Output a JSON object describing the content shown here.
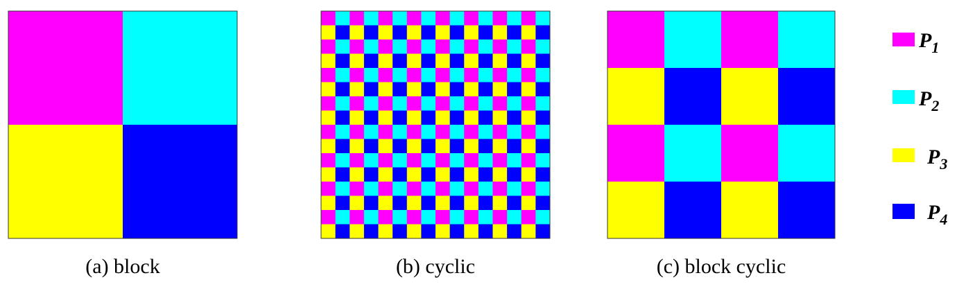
{
  "colors": {
    "P1": "#ff00ff",
    "P2": "#00ffff",
    "P3": "#ffff00",
    "P4": "#0000ff",
    "border": "#333333"
  },
  "panels": [
    {
      "id": "block",
      "caption": "(a) block",
      "grid": 2,
      "pattern": "block"
    },
    {
      "id": "cyclic",
      "caption": "(b) cyclic",
      "grid": 16,
      "pattern": "cyclic"
    },
    {
      "id": "block-cyclic",
      "caption": "(c) block cyclic",
      "grid": 4,
      "pattern": "cyclic"
    }
  ],
  "legend": [
    {
      "key": "P1",
      "letter": "P",
      "sub": "1"
    },
    {
      "key": "P2",
      "letter": "P",
      "sub": "2"
    },
    {
      "key": "P3",
      "letter": "P",
      "sub": "3"
    },
    {
      "key": "P4",
      "letter": "P",
      "sub": "4"
    }
  ]
}
